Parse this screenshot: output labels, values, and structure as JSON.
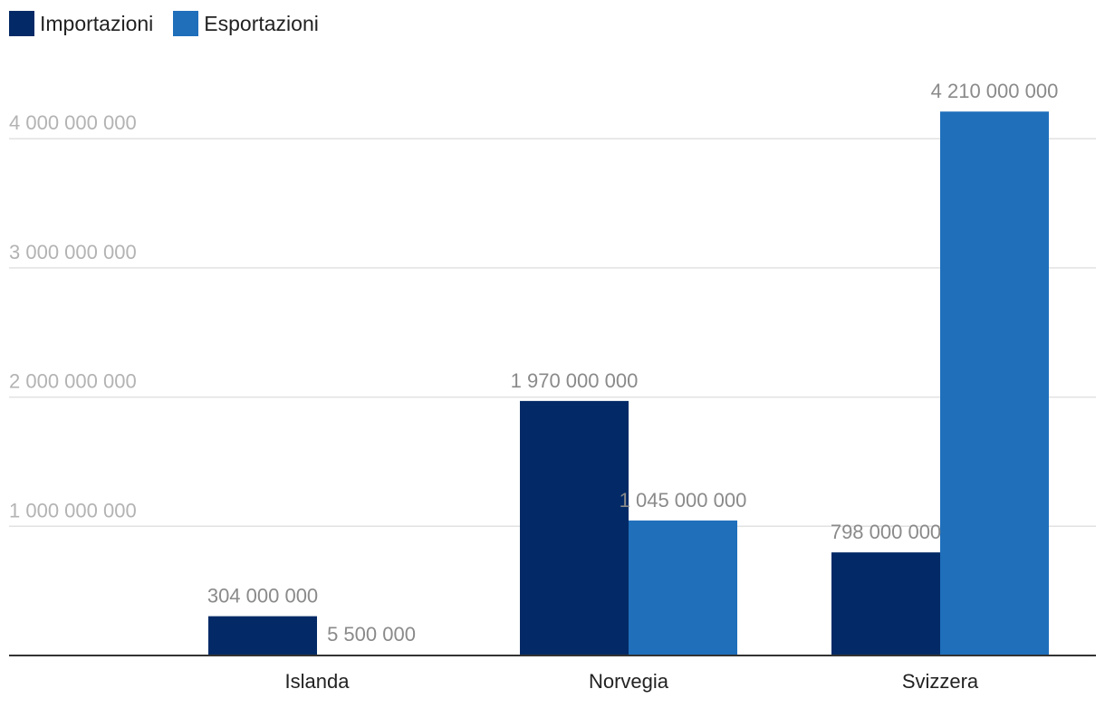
{
  "chart_data": {
    "type": "bar",
    "categories": [
      "Islanda",
      "Norvegia",
      "Svizzera"
    ],
    "series": [
      {
        "name": "Importazioni",
        "color": "#032a66",
        "values": [
          304000000,
          1970000000,
          798000000
        ],
        "labels": [
          "304 000 000",
          "1 970 000 000",
          "798 000 000"
        ]
      },
      {
        "name": "Esportazioni",
        "color": "#1f6fbb",
        "values": [
          5500000,
          1045000000,
          4210000000
        ],
        "labels": [
          "5 500 000",
          "1 045 000 000",
          "4 210 000 000"
        ]
      }
    ],
    "yticks": [
      1000000000,
      2000000000,
      3000000000,
      4000000000
    ],
    "ytick_labels": [
      "1 000 000 000",
      "2 000 000 000",
      "3 000 000 000",
      "4 000 000 000"
    ],
    "ylim": [
      0,
      4300000000
    ],
    "title": "",
    "xlabel": "",
    "ylabel": "",
    "legend": "top-left",
    "grid": true
  }
}
